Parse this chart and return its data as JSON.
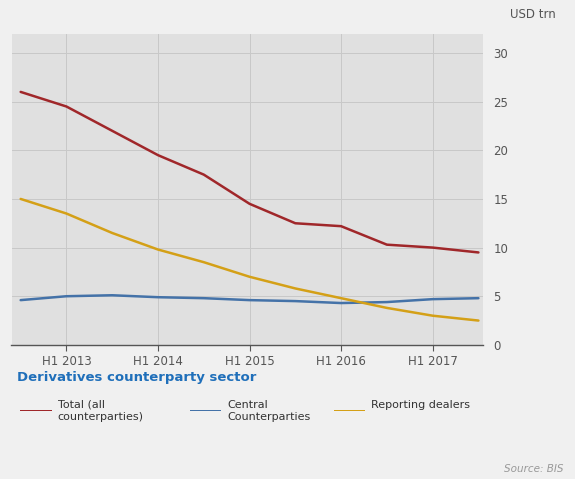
{
  "title": "Derivatives counterparty sector",
  "ylabel": "USD trn",
  "source": "Source: BIS",
  "ylim": [
    0,
    32
  ],
  "yticks": [
    0,
    5,
    10,
    15,
    20,
    25,
    30
  ],
  "x_labels": [
    "H1 2013",
    "H1 2014",
    "H1 2015",
    "H1 2016",
    "H1 2017"
  ],
  "x_positions": [
    1,
    3,
    5,
    7,
    9
  ],
  "series": {
    "total": {
      "label": "Total (all\ncounterparties)",
      "color": "#A0272A",
      "x": [
        0,
        1,
        2,
        3,
        4,
        5,
        6,
        7,
        8,
        9,
        10
      ],
      "y": [
        26.0,
        24.5,
        22.0,
        19.5,
        17.5,
        14.5,
        12.5,
        12.2,
        10.3,
        10.0,
        9.5
      ]
    },
    "central": {
      "label": "Central\nCounterparties",
      "color": "#4472A8",
      "x": [
        0,
        1,
        2,
        3,
        4,
        5,
        6,
        7,
        8,
        9,
        10
      ],
      "y": [
        4.6,
        5.0,
        5.1,
        4.9,
        4.8,
        4.6,
        4.5,
        4.3,
        4.4,
        4.7,
        4.8
      ]
    },
    "reporting": {
      "label": "Reporting dealers",
      "color": "#D4A017",
      "x": [
        0,
        1,
        2,
        3,
        4,
        5,
        6,
        7,
        8,
        9,
        10
      ],
      "y": [
        15.0,
        13.5,
        11.5,
        9.8,
        8.5,
        7.0,
        5.8,
        4.8,
        3.8,
        3.0,
        2.5
      ]
    }
  },
  "plot_bg_color": "#E0E0E0",
  "figure_bg_color": "#F0F0F0",
  "grid_color": "#C8C8C8",
  "title_color": "#1F6FBA",
  "tick_label_color": "#555555",
  "legend_label_color": "#333333",
  "source_color": "#999999",
  "axis_line_color": "#555555"
}
